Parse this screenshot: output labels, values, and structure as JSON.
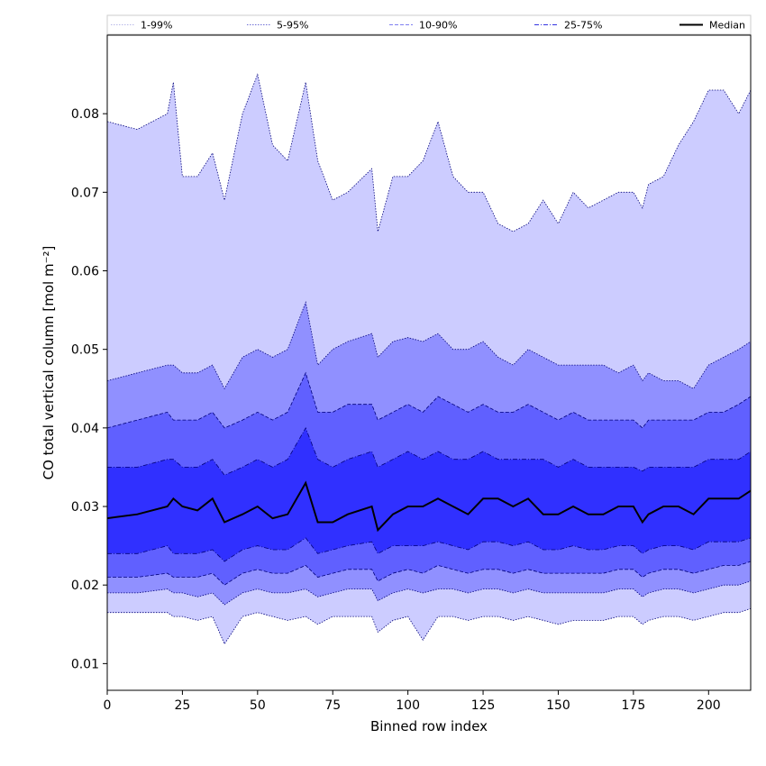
{
  "chart_data": {
    "type": "area",
    "xlabel": "Binned row index",
    "ylabel": "CO total vertical column [mol m⁻²]",
    "xlim": [
      0,
      214
    ],
    "ylim": [
      0.0066,
      0.09
    ],
    "xticks": [
      0,
      25,
      50,
      75,
      100,
      125,
      150,
      175,
      200
    ],
    "yticks": [
      0.01,
      0.02,
      0.03,
      0.04,
      0.05,
      0.06,
      0.07,
      0.08
    ],
    "ytick_labels": [
      "0.01",
      "0.02",
      "0.03",
      "0.04",
      "0.05",
      "0.06",
      "0.07",
      "0.08"
    ],
    "grid": false,
    "legend_position": "top, full width",
    "legend": [
      {
        "name": "1-99%",
        "style": "dotted",
        "color": "#b8b8e8"
      },
      {
        "name": "5-95%",
        "style": "dotted",
        "color": "#6f6fd6"
      },
      {
        "name": "10-90%",
        "style": "dashed",
        "color": "#7f7ff0"
      },
      {
        "name": "25-75%",
        "style": "dashdot",
        "color": "#3434e0"
      },
      {
        "name": "Median",
        "style": "solid",
        "color": "#000000"
      }
    ],
    "band_colors": [
      "#ccccff",
      "#9090ff",
      "#6060ff",
      "#3030ff"
    ],
    "median_color": "#000000",
    "x": [
      0,
      10,
      20,
      22,
      25,
      30,
      35,
      39,
      45,
      50,
      55,
      60,
      66,
      70,
      75,
      80,
      88,
      90,
      95,
      100,
      105,
      110,
      115,
      120,
      125,
      130,
      135,
      140,
      145,
      150,
      155,
      160,
      165,
      170,
      175,
      178,
      180,
      185,
      190,
      195,
      200,
      205,
      210,
      214
    ],
    "series": [
      {
        "name": "1-99%",
        "role": "band_upper",
        "values": [
          0.079,
          0.078,
          0.08,
          0.084,
          0.072,
          0.072,
          0.075,
          0.069,
          0.08,
          0.085,
          0.076,
          0.074,
          0.084,
          0.074,
          0.069,
          0.07,
          0.073,
          0.065,
          0.072,
          0.072,
          0.074,
          0.079,
          0.072,
          0.07,
          0.07,
          0.066,
          0.065,
          0.066,
          0.069,
          0.066,
          0.07,
          0.068,
          0.069,
          0.07,
          0.07,
          0.068,
          0.071,
          0.072,
          0.076,
          0.079,
          0.083,
          0.083,
          0.08,
          0.083
        ]
      },
      {
        "name": "5-95%",
        "role": "band_upper",
        "values": [
          0.046,
          0.047,
          0.048,
          0.048,
          0.047,
          0.047,
          0.048,
          0.045,
          0.049,
          0.05,
          0.049,
          0.05,
          0.056,
          0.048,
          0.05,
          0.051,
          0.052,
          0.049,
          0.051,
          0.0515,
          0.051,
          0.052,
          0.05,
          0.05,
          0.051,
          0.049,
          0.048,
          0.05,
          0.049,
          0.048,
          0.048,
          0.048,
          0.048,
          0.047,
          0.048,
          0.046,
          0.047,
          0.046,
          0.046,
          0.045,
          0.048,
          0.049,
          0.05,
          0.051
        ]
      },
      {
        "name": "10-90%",
        "role": "band_upper",
        "values": [
          0.04,
          0.041,
          0.042,
          0.041,
          0.041,
          0.041,
          0.042,
          0.04,
          0.041,
          0.042,
          0.041,
          0.042,
          0.047,
          0.042,
          0.042,
          0.043,
          0.043,
          0.041,
          0.042,
          0.043,
          0.042,
          0.044,
          0.043,
          0.042,
          0.043,
          0.042,
          0.042,
          0.043,
          0.042,
          0.041,
          0.042,
          0.041,
          0.041,
          0.041,
          0.041,
          0.04,
          0.041,
          0.041,
          0.041,
          0.041,
          0.042,
          0.042,
          0.043,
          0.044
        ]
      },
      {
        "name": "25-75%",
        "role": "band_upper",
        "values": [
          0.035,
          0.035,
          0.036,
          0.036,
          0.035,
          0.035,
          0.036,
          0.034,
          0.035,
          0.036,
          0.035,
          0.036,
          0.04,
          0.036,
          0.035,
          0.036,
          0.037,
          0.035,
          0.036,
          0.037,
          0.036,
          0.037,
          0.036,
          0.036,
          0.037,
          0.036,
          0.036,
          0.036,
          0.036,
          0.035,
          0.036,
          0.035,
          0.035,
          0.035,
          0.035,
          0.0345,
          0.035,
          0.035,
          0.035,
          0.035,
          0.036,
          0.036,
          0.036,
          0.037
        ]
      },
      {
        "name": "Median",
        "role": "line",
        "values": [
          0.0285,
          0.029,
          0.03,
          0.031,
          0.03,
          0.0295,
          0.031,
          0.028,
          0.029,
          0.03,
          0.0285,
          0.029,
          0.033,
          0.028,
          0.028,
          0.029,
          0.03,
          0.027,
          0.029,
          0.03,
          0.03,
          0.031,
          0.03,
          0.029,
          0.031,
          0.031,
          0.03,
          0.031,
          0.029,
          0.029,
          0.03,
          0.029,
          0.029,
          0.03,
          0.03,
          0.028,
          0.029,
          0.03,
          0.03,
          0.029,
          0.031,
          0.031,
          0.031,
          0.032
        ]
      },
      {
        "name": "25-75%",
        "role": "band_lower",
        "values": [
          0.024,
          0.024,
          0.025,
          0.024,
          0.024,
          0.024,
          0.0245,
          0.023,
          0.0245,
          0.025,
          0.0245,
          0.0245,
          0.026,
          0.024,
          0.0245,
          0.025,
          0.0255,
          0.024,
          0.025,
          0.025,
          0.025,
          0.0255,
          0.025,
          0.0245,
          0.0255,
          0.0255,
          0.025,
          0.0255,
          0.0245,
          0.0245,
          0.025,
          0.0245,
          0.0245,
          0.025,
          0.025,
          0.024,
          0.0245,
          0.025,
          0.025,
          0.0245,
          0.0255,
          0.0255,
          0.0255,
          0.026
        ]
      },
      {
        "name": "10-90%",
        "role": "band_lower",
        "values": [
          0.021,
          0.021,
          0.0215,
          0.021,
          0.021,
          0.021,
          0.0215,
          0.02,
          0.0215,
          0.022,
          0.0215,
          0.0215,
          0.0225,
          0.021,
          0.0215,
          0.022,
          0.022,
          0.0205,
          0.0215,
          0.022,
          0.0215,
          0.0225,
          0.022,
          0.0215,
          0.022,
          0.022,
          0.0215,
          0.022,
          0.0215,
          0.0215,
          0.0215,
          0.0215,
          0.0215,
          0.022,
          0.022,
          0.021,
          0.0215,
          0.022,
          0.022,
          0.0215,
          0.022,
          0.0225,
          0.0225,
          0.023
        ]
      },
      {
        "name": "5-95%",
        "role": "band_lower",
        "values": [
          0.019,
          0.019,
          0.0195,
          0.019,
          0.019,
          0.0185,
          0.019,
          0.0175,
          0.019,
          0.0195,
          0.019,
          0.019,
          0.0195,
          0.0185,
          0.019,
          0.0195,
          0.0195,
          0.018,
          0.019,
          0.0195,
          0.019,
          0.0195,
          0.0195,
          0.019,
          0.0195,
          0.0195,
          0.019,
          0.0195,
          0.019,
          0.019,
          0.019,
          0.019,
          0.019,
          0.0195,
          0.0195,
          0.0185,
          0.019,
          0.0195,
          0.0195,
          0.019,
          0.0195,
          0.02,
          0.02,
          0.0205
        ]
      },
      {
        "name": "1-99%",
        "role": "band_lower",
        "values": [
          0.0165,
          0.0165,
          0.0165,
          0.016,
          0.016,
          0.0155,
          0.016,
          0.0125,
          0.016,
          0.0165,
          0.016,
          0.0155,
          0.016,
          0.015,
          0.016,
          0.016,
          0.016,
          0.014,
          0.0155,
          0.016,
          0.013,
          0.016,
          0.016,
          0.0155,
          0.016,
          0.016,
          0.0155,
          0.016,
          0.0155,
          0.015,
          0.0155,
          0.0155,
          0.0155,
          0.016,
          0.016,
          0.015,
          0.0155,
          0.016,
          0.016,
          0.0155,
          0.016,
          0.0165,
          0.0165,
          0.017
        ]
      }
    ]
  }
}
